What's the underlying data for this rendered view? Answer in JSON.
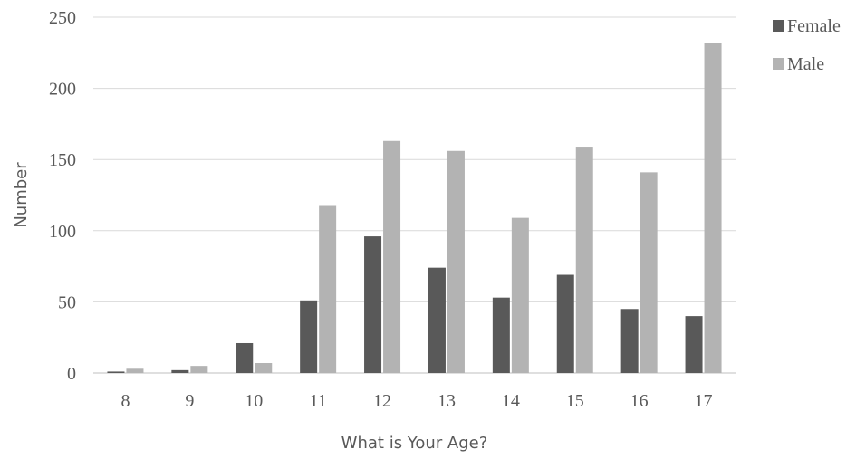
{
  "chart_data": {
    "type": "bar",
    "title": "",
    "xlabel": "What is Your Age?",
    "ylabel": "Number",
    "categories": [
      "8",
      "9",
      "10",
      "11",
      "12",
      "13",
      "14",
      "15",
      "16",
      "17"
    ],
    "series": [
      {
        "name": "Female",
        "color": "#595959",
        "values": [
          1,
          2,
          21,
          51,
          96,
          74,
          53,
          69,
          45,
          40
        ]
      },
      {
        "name": "Male",
        "color": "#b3b3b3",
        "values": [
          3,
          5,
          7,
          118,
          163,
          156,
          109,
          159,
          141,
          232
        ]
      }
    ],
    "ylim": [
      0,
      250
    ],
    "yticks": [
      "0",
      "50",
      "100",
      "150",
      "200",
      "250"
    ],
    "grid": true,
    "legend_position": "top-right"
  }
}
